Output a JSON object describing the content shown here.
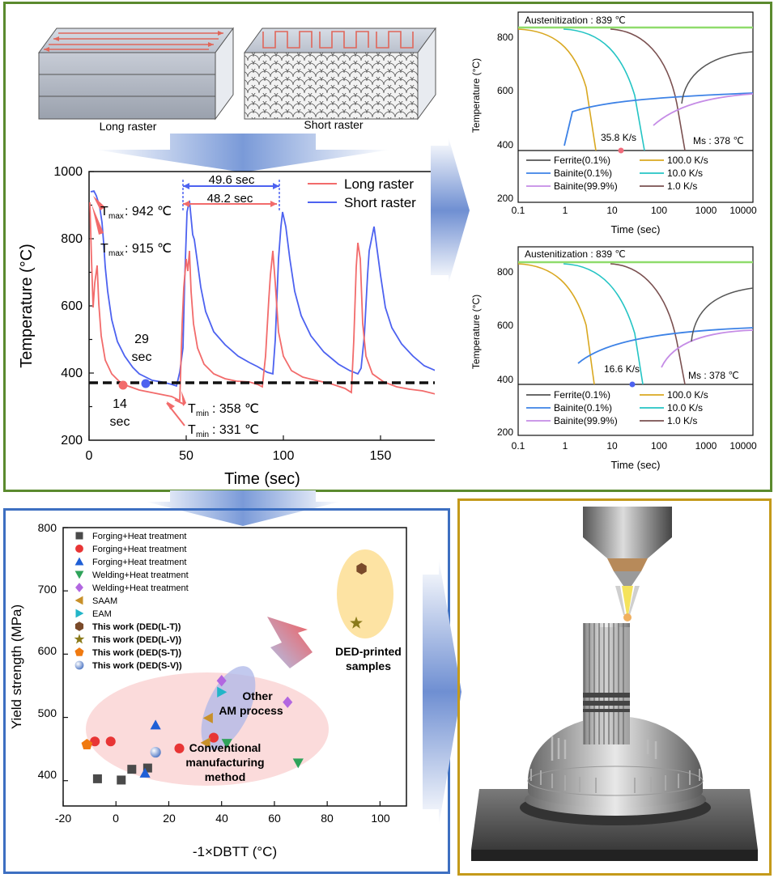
{
  "raster": {
    "long_label": "Long raster",
    "short_label": "Short raster"
  },
  "thermal_plot": {
    "ylabel": "Temperature (°C)",
    "xlabel": "Time (sec)",
    "xticks": [
      "0",
      "50",
      "100",
      "150"
    ],
    "yticks": [
      "200",
      "400",
      "600",
      "800",
      "1000"
    ],
    "legend": [
      "Long raster",
      "Short raster"
    ],
    "annotations": {
      "dt_short": "49.6 sec",
      "dt_long": "48.2 sec",
      "tmax_long_val": ": 942 ℃",
      "tmax_short_val": ": 915 ℃",
      "tmin_1_val": ": 358 ℃",
      "tmin_2_val": ": 331 ℃",
      "t_sym": "T",
      "max_sub": "max",
      "min_sub": "min",
      "t29_a": "29",
      "t29_b": "sec",
      "t14_a": "14",
      "t14_b": "sec"
    }
  },
  "cct_top": {
    "title": "Austenitization : 839 ℃",
    "ylabel": "Temperature (°C)",
    "xlabel": "Time (sec)",
    "ms_label": "Ms : 378 ℃",
    "rate_label": "35.8 K/s",
    "yticks": [
      "200",
      "400",
      "600",
      "800"
    ],
    "xticks": [
      "0.1",
      "1",
      "10",
      "100",
      "1000",
      "10000"
    ],
    "legend": [
      "Ferrite(0.1%)",
      "100.0 K/s",
      "Bainite(0.1%)",
      "10.0 K/s",
      "Bainite(99.9%)",
      "1.0 K/s"
    ]
  },
  "cct_bottom": {
    "title": "Austenitization : 839 ℃",
    "ylabel": "Temperature (°C)",
    "xlabel": "Time (sec)",
    "ms_label": "Ms : 378 ℃",
    "rate_label": "16.6 K/s",
    "yticks": [
      "200",
      "400",
      "600",
      "800"
    ],
    "xticks": [
      "0.1",
      "1",
      "10",
      "100",
      "1000",
      "10000"
    ],
    "legend": [
      "Ferrite(0.1%)",
      "100.0 K/s",
      "Bainite(0.1%)",
      "10.0 K/s",
      "Bainite(99.9%)",
      "1.0 K/s"
    ]
  },
  "strength_plot": {
    "ylabel": "Yield strength (MPa)",
    "xlabel": "-1×DBTT (°C)",
    "xticks": [
      "-20",
      "0",
      "20",
      "40",
      "60",
      "80",
      "100"
    ],
    "yticks": [
      "400",
      "500",
      "600",
      "700",
      "800"
    ],
    "legend": [
      {
        "label": "Forging+Heat treatment",
        "color": "#4a4a4a",
        "shape": "square",
        "bold": false
      },
      {
        "label": "Forging+Heat treatment",
        "color": "#e83535",
        "shape": "circle",
        "bold": false
      },
      {
        "label": "Forging+Heat treatment",
        "color": "#1f5fd6",
        "shape": "triangle-up",
        "bold": false
      },
      {
        "label": "Welding+Heat treatment",
        "color": "#2fa35a",
        "shape": "triangle-down",
        "bold": false
      },
      {
        "label": "Welding+Heat treatment",
        "color": "#b267e0",
        "shape": "diamond",
        "bold": false
      },
      {
        "label": "SAAM",
        "color": "#c8902a",
        "shape": "triangle-left",
        "bold": false
      },
      {
        "label": "EAM",
        "color": "#22b5c8",
        "shape": "triangle-right",
        "bold": false
      },
      {
        "label": "This work (DED(L-T))",
        "color": "#7a4a2a",
        "shape": "hexagon",
        "bold": true
      },
      {
        "label": "This work (DED(L-V))",
        "color": "#8a7a1a",
        "shape": "star",
        "bold": true
      },
      {
        "label": "This work (DED(S-T))",
        "color": "#f07a10",
        "shape": "pentagon",
        "bold": true
      },
      {
        "label": "This work (DED(S-V))",
        "color": "#6a8fd0",
        "shape": "sphere",
        "bold": true
      }
    ],
    "region_conventional": [
      "Conventional",
      "manufacturing",
      "method"
    ],
    "region_other_am": [
      "Other",
      "AM process"
    ],
    "region_ded": [
      "DED-printed",
      "samples"
    ]
  },
  "chart_data": {
    "type": "scatter",
    "xlabel": "-1×DBTT (°C)",
    "ylabel": "Yield strength (MPa)",
    "xlim": [
      -20,
      110
    ],
    "ylim": [
      360,
      800
    ],
    "series": [
      {
        "name": "Forging+Heat treatment",
        "shape": "square",
        "color": "#4a4a4a",
        "points": [
          [
            -7,
            403
          ],
          [
            2,
            401
          ],
          [
            6,
            418
          ],
          [
            12,
            420
          ]
        ]
      },
      {
        "name": "Forging+Heat treatment",
        "shape": "circle",
        "color": "#e83535",
        "points": [
          [
            -8,
            462
          ],
          [
            -2,
            462
          ],
          [
            24,
            451
          ],
          [
            37,
            468
          ]
        ]
      },
      {
        "name": "Forging+Heat treatment",
        "shape": "triangle-up",
        "color": "#1f5fd6",
        "points": [
          [
            15,
            488
          ],
          [
            11,
            412
          ]
        ]
      },
      {
        "name": "Welding+Heat treatment",
        "shape": "triangle-down",
        "color": "#2fa35a",
        "points": [
          [
            42,
            459
          ],
          [
            69,
            428
          ]
        ]
      },
      {
        "name": "Welding+Heat treatment",
        "shape": "diamond",
        "color": "#b267e0",
        "points": [
          [
            40,
            558
          ],
          [
            65,
            524
          ]
        ]
      },
      {
        "name": "SAAM",
        "shape": "triangle-left",
        "color": "#c8902a",
        "points": [
          [
            35,
            499
          ],
          [
            34,
            460
          ]
        ]
      },
      {
        "name": "EAM",
        "shape": "triangle-right",
        "color": "#22b5c8",
        "points": [
          [
            40,
            540
          ]
        ]
      },
      {
        "name": "This work (DED(L-T))",
        "shape": "hexagon",
        "color": "#7a4a2a",
        "points": [
          [
            93,
            735
          ]
        ]
      },
      {
        "name": "This work (DED(L-V))",
        "shape": "star",
        "color": "#8a7a1a",
        "points": [
          [
            91,
            649
          ]
        ]
      },
      {
        "name": "This work (DED(S-T))",
        "shape": "pentagon",
        "color": "#f07a10",
        "points": [
          [
            -11,
            457
          ]
        ]
      },
      {
        "name": "This work (DED(S-V))",
        "shape": "sphere",
        "color": "#6a8fd0",
        "points": [
          [
            15,
            445
          ]
        ]
      }
    ]
  },
  "colors": {
    "top_border": "#5b8a2e",
    "strength_border": "#3d6fc1",
    "ded_border": "#c49a1a",
    "long_raster": "#f26b6b",
    "short_raster": "#4d62f0"
  }
}
